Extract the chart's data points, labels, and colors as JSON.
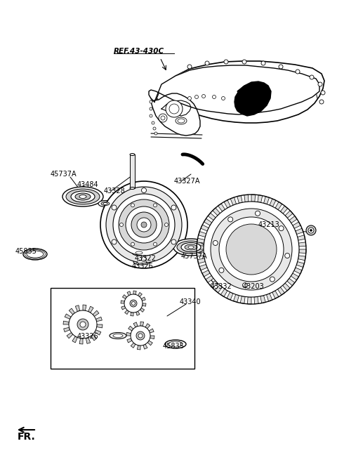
{
  "bg_color": "#ffffff",
  "line_color": "#000000",
  "housing": {
    "outer_x": [
      248,
      240,
      228,
      220,
      218,
      222,
      230,
      240,
      252,
      260,
      268,
      272,
      275,
      275,
      272,
      268,
      262,
      255,
      250,
      248
    ],
    "outer_y": [
      105,
      112,
      122,
      135,
      150,
      165,
      175,
      182,
      185,
      183,
      178,
      170,
      160,
      148,
      138,
      128,
      118,
      110,
      106,
      105
    ]
  },
  "labels": [
    [
      "REF.43-430C",
      162,
      73,
      7.5,
      true
    ],
    [
      "45737A",
      78,
      248,
      7.0,
      false
    ],
    [
      "43484",
      110,
      263,
      7.0,
      false
    ],
    [
      "43328",
      148,
      273,
      7.0,
      false
    ],
    [
      "43327A",
      248,
      260,
      7.0,
      false
    ],
    [
      "43322",
      198,
      368,
      7.0,
      false
    ],
    [
      "43326",
      200,
      378,
      7.0,
      false
    ],
    [
      "45737A",
      258,
      365,
      7.0,
      false
    ],
    [
      "45835",
      28,
      360,
      7.0,
      false
    ],
    [
      "43213",
      370,
      322,
      7.0,
      false
    ],
    [
      "43332",
      305,
      408,
      7.0,
      false
    ],
    [
      "43203",
      352,
      408,
      7.0,
      false
    ],
    [
      "43340",
      255,
      432,
      7.0,
      false
    ],
    [
      "43326",
      168,
      478,
      7.0,
      false
    ],
    [
      "45835",
      238,
      493,
      7.0,
      false
    ]
  ]
}
